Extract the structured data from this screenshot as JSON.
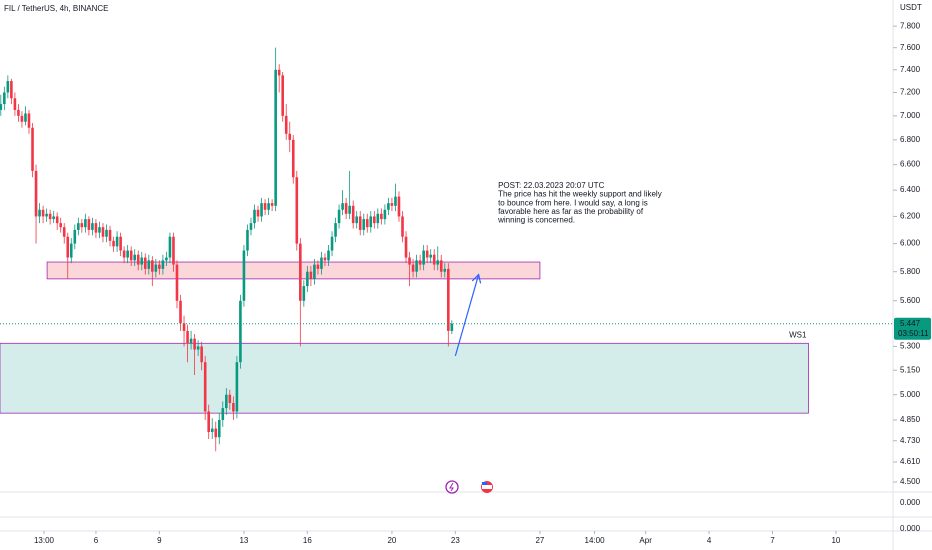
{
  "chart_data": {
    "type": "candlestick",
    "title": "FIL / TetherUS, 4h, BINANCE",
    "y_unit_label": "USDT",
    "log_scale": true,
    "grid": false,
    "up_color": "#089981",
    "down_color": "#f23645",
    "x": [
      1.5,
      1.667,
      1.833,
      2,
      2.167,
      2.333,
      2.5,
      2.667,
      2.833,
      3,
      3.167,
      3.333,
      3.5,
      3.667,
      3.833,
      4,
      4.167,
      4.333,
      4.5,
      4.667,
      4.833,
      5,
      5.167,
      5.333,
      5.5,
      5.667,
      5.833,
      6,
      6.167,
      6.333,
      6.5,
      6.667,
      6.833,
      7,
      7.167,
      7.333,
      7.5,
      7.667,
      7.833,
      8,
      8.167,
      8.333,
      8.5,
      8.667,
      8.833,
      9,
      9.167,
      9.333,
      9.5,
      9.667,
      9.833,
      10,
      10.167,
      10.333,
      10.5,
      10.667,
      10.833,
      11,
      11.167,
      11.333,
      11.5,
      11.667,
      11.833,
      12,
      12.167,
      12.333,
      12.5,
      12.667,
      12.833,
      13,
      13.167,
      13.333,
      13.5,
      13.667,
      13.833,
      14,
      14.167,
      14.333,
      14.5,
      14.667,
      14.833,
      15,
      15.167,
      15.333,
      15.5,
      15.667,
      15.833,
      16,
      16.167,
      16.333,
      16.5,
      16.667,
      16.833,
      17,
      17.167,
      17.333,
      17.5,
      17.667,
      17.833,
      18,
      18.167,
      18.333,
      18.5,
      18.667,
      18.833,
      19,
      19.167,
      19.333,
      19.5,
      19.667,
      19.833,
      20,
      20.167,
      20.333,
      20.5,
      20.667,
      20.833,
      21,
      21.167,
      21.333,
      21.5,
      21.667,
      21.833,
      22,
      22.167,
      22.333,
      22.5,
      22.667,
      22.833
    ],
    "candles": [
      [
        7.05,
        7.18,
        7.0,
        7.1
      ],
      [
        7.1,
        7.25,
        7.05,
        7.2
      ],
      [
        7.2,
        7.35,
        7.15,
        7.3
      ],
      [
        7.3,
        7.32,
        7.1,
        7.15
      ],
      [
        7.15,
        7.2,
        7.0,
        7.05
      ],
      [
        7.05,
        7.1,
        6.95,
        7.0
      ],
      [
        7.0,
        7.04,
        6.9,
        6.95
      ],
      [
        6.95,
        7.08,
        6.92,
        7.02
      ],
      [
        7.02,
        7.05,
        6.85,
        6.9
      ],
      [
        6.9,
        6.94,
        6.5,
        6.55
      ],
      [
        6.55,
        6.6,
        6.0,
        6.2
      ],
      [
        6.2,
        6.3,
        6.15,
        6.25
      ],
      [
        6.25,
        6.28,
        6.15,
        6.2
      ],
      [
        6.2,
        6.26,
        6.16,
        6.22
      ],
      [
        6.22,
        6.25,
        6.14,
        6.18
      ],
      [
        6.18,
        6.24,
        6.15,
        6.2
      ],
      [
        6.2,
        6.23,
        6.1,
        6.15
      ],
      [
        6.15,
        6.19,
        6.08,
        6.12
      ],
      [
        6.12,
        6.15,
        6.0,
        6.05
      ],
      [
        6.05,
        6.08,
        5.75,
        5.9
      ],
      [
        5.9,
        6.04,
        5.86,
        6.0
      ],
      [
        6.0,
        6.14,
        5.96,
        6.1
      ],
      [
        6.1,
        6.19,
        6.06,
        6.15
      ],
      [
        6.15,
        6.18,
        6.08,
        6.12
      ],
      [
        6.12,
        6.22,
        6.08,
        6.18
      ],
      [
        6.18,
        6.2,
        6.06,
        6.1
      ],
      [
        6.1,
        6.19,
        6.06,
        6.15
      ],
      [
        6.15,
        6.18,
        6.04,
        6.08
      ],
      [
        6.08,
        6.16,
        6.04,
        6.12
      ],
      [
        6.12,
        6.15,
        6.01,
        6.05
      ],
      [
        6.05,
        6.14,
        6.01,
        6.1
      ],
      [
        6.1,
        6.13,
        5.98,
        6.02
      ],
      [
        6.02,
        6.05,
        5.94,
        5.98
      ],
      [
        5.98,
        6.09,
        5.94,
        6.05
      ],
      [
        6.05,
        6.08,
        5.91,
        5.95
      ],
      [
        5.95,
        5.98,
        5.86,
        5.9
      ],
      [
        5.9,
        5.99,
        5.86,
        5.95
      ],
      [
        5.95,
        5.98,
        5.84,
        5.88
      ],
      [
        5.88,
        5.96,
        5.84,
        5.92
      ],
      [
        5.92,
        5.95,
        5.81,
        5.85
      ],
      [
        5.85,
        5.94,
        5.81,
        5.9
      ],
      [
        5.9,
        5.93,
        5.78,
        5.82
      ],
      [
        5.82,
        5.92,
        5.78,
        5.88
      ],
      [
        5.88,
        5.91,
        5.7,
        5.8
      ],
      [
        5.8,
        5.89,
        5.76,
        5.85
      ],
      [
        5.85,
        5.88,
        5.78,
        5.82
      ],
      [
        5.82,
        5.92,
        5.78,
        5.88
      ],
      [
        5.88,
        5.94,
        5.84,
        5.9
      ],
      [
        5.9,
        6.08,
        5.86,
        6.05
      ],
      [
        6.05,
        6.08,
        5.8,
        5.85
      ],
      [
        5.85,
        5.88,
        5.55,
        5.6
      ],
      [
        5.6,
        5.64,
        5.4,
        5.45
      ],
      [
        5.45,
        5.5,
        5.3,
        5.4
      ],
      [
        5.4,
        5.44,
        5.2,
        5.32
      ],
      [
        5.32,
        5.4,
        5.28,
        5.35
      ],
      [
        5.35,
        5.38,
        5.12,
        5.28
      ],
      [
        5.28,
        5.34,
        5.24,
        5.3
      ],
      [
        5.3,
        5.33,
        5.15,
        5.2
      ],
      [
        5.2,
        5.24,
        4.85,
        4.9
      ],
      [
        4.9,
        4.94,
        4.74,
        4.78
      ],
      [
        4.78,
        4.86,
        4.74,
        4.8
      ],
      [
        4.8,
        4.84,
        4.67,
        4.75
      ],
      [
        4.75,
        4.89,
        4.71,
        4.85
      ],
      [
        4.85,
        4.96,
        4.81,
        4.92
      ],
      [
        4.92,
        5.04,
        4.88,
        5.0
      ],
      [
        5.0,
        5.03,
        4.91,
        4.95
      ],
      [
        4.95,
        4.99,
        4.85,
        4.9
      ],
      [
        4.9,
        5.24,
        4.86,
        5.2
      ],
      [
        5.2,
        5.64,
        5.16,
        5.6
      ],
      [
        5.6,
        5.99,
        5.56,
        5.95
      ],
      [
        5.95,
        6.14,
        5.91,
        6.1
      ],
      [
        6.1,
        6.19,
        6.06,
        6.15
      ],
      [
        6.15,
        6.29,
        6.11,
        6.25
      ],
      [
        6.25,
        6.28,
        6.16,
        6.2
      ],
      [
        6.2,
        6.34,
        6.16,
        6.3
      ],
      [
        6.3,
        6.33,
        6.21,
        6.25
      ],
      [
        6.25,
        6.34,
        6.21,
        6.3
      ],
      [
        6.3,
        6.33,
        6.24,
        6.28
      ],
      [
        6.28,
        7.6,
        6.24,
        7.4
      ],
      [
        7.4,
        7.45,
        7.2,
        7.35
      ],
      [
        7.35,
        7.38,
        6.95,
        7.0
      ],
      [
        7.0,
        7.1,
        6.8,
        6.85
      ],
      [
        6.85,
        6.95,
        6.7,
        6.8
      ],
      [
        6.8,
        6.84,
        6.45,
        6.5
      ],
      [
        6.5,
        6.55,
        5.95,
        6.0
      ],
      [
        6.0,
        6.04,
        5.3,
        5.6
      ],
      [
        5.6,
        5.74,
        5.56,
        5.7
      ],
      [
        5.7,
        5.84,
        5.66,
        5.8
      ],
      [
        5.8,
        5.84,
        5.7,
        5.75
      ],
      [
        5.75,
        5.89,
        5.71,
        5.85
      ],
      [
        5.85,
        5.88,
        5.78,
        5.82
      ],
      [
        5.82,
        5.94,
        5.78,
        5.9
      ],
      [
        5.9,
        5.93,
        5.84,
        5.88
      ],
      [
        5.88,
        5.99,
        5.84,
        5.95
      ],
      [
        5.95,
        6.09,
        5.91,
        6.05
      ],
      [
        6.05,
        6.19,
        6.01,
        6.15
      ],
      [
        6.15,
        6.29,
        6.11,
        6.25
      ],
      [
        6.25,
        6.4,
        6.21,
        6.3
      ],
      [
        6.3,
        6.34,
        6.18,
        6.22
      ],
      [
        6.22,
        6.55,
        6.18,
        6.28
      ],
      [
        6.28,
        6.32,
        6.11,
        6.15
      ],
      [
        6.15,
        6.24,
        6.11,
        6.2
      ],
      [
        6.2,
        6.24,
        6.06,
        6.1
      ],
      [
        6.1,
        6.22,
        6.06,
        6.18
      ],
      [
        6.18,
        6.22,
        6.08,
        6.12
      ],
      [
        6.12,
        6.24,
        6.08,
        6.2
      ],
      [
        6.2,
        6.24,
        6.11,
        6.15
      ],
      [
        6.15,
        6.26,
        6.11,
        6.22
      ],
      [
        6.22,
        6.26,
        6.14,
        6.18
      ],
      [
        6.18,
        6.29,
        6.14,
        6.25
      ],
      [
        6.25,
        6.34,
        6.21,
        6.3
      ],
      [
        6.3,
        6.34,
        6.24,
        6.28
      ],
      [
        6.28,
        6.45,
        6.24,
        6.35
      ],
      [
        6.35,
        6.39,
        6.16,
        6.2
      ],
      [
        6.2,
        6.24,
        6.01,
        6.05
      ],
      [
        6.05,
        6.09,
        5.86,
        5.9
      ],
      [
        5.9,
        5.94,
        5.7,
        5.85
      ],
      [
        5.85,
        5.89,
        5.76,
        5.8
      ],
      [
        5.8,
        5.92,
        5.76,
        5.88
      ],
      [
        5.88,
        5.92,
        5.81,
        5.85
      ],
      [
        5.85,
        5.99,
        5.81,
        5.95
      ],
      [
        5.95,
        5.99,
        5.86,
        5.9
      ],
      [
        5.9,
        5.96,
        5.86,
        5.92
      ],
      [
        5.92,
        5.96,
        5.81,
        5.85
      ],
      [
        5.85,
        5.98,
        5.81,
        5.88
      ],
      [
        5.88,
        5.92,
        5.76,
        5.8
      ],
      [
        5.8,
        5.86,
        5.76,
        5.82
      ],
      [
        5.82,
        5.86,
        5.3,
        5.4
      ],
      [
        5.4,
        5.47,
        5.38,
        5.447
      ]
    ],
    "xlim": [
      1.462,
      43.7
    ],
    "ylim": [
      4.457,
      8.05
    ],
    "yticks": [
      {
        "value": 7.8,
        "label": "7.800"
      },
      {
        "value": 7.6,
        "label": "7.600"
      },
      {
        "value": 7.4,
        "label": "7.400"
      },
      {
        "value": 7.2,
        "label": "7.200"
      },
      {
        "value": 7,
        "label": "7.000"
      },
      {
        "value": 6.8,
        "label": "6.800"
      },
      {
        "value": 6.6,
        "label": "6.600"
      },
      {
        "value": 6.4,
        "label": "6.400"
      },
      {
        "value": 6.2,
        "label": "6.200"
      },
      {
        "value": 6,
        "label": "6.000"
      },
      {
        "value": 5.8,
        "label": "5.800"
      },
      {
        "value": 5.6,
        "label": "5.600"
      },
      {
        "value": 5.3,
        "label": "5.300"
      },
      {
        "value": 5.15,
        "label": "5.150"
      },
      {
        "value": 5,
        "label": "5.000"
      },
      {
        "value": 4.85,
        "label": "4.850"
      },
      {
        "value": 4.73,
        "label": "4.730"
      },
      {
        "value": 4.61,
        "label": "4.610"
      },
      {
        "value": 4.5,
        "label": "4.500"
      }
    ],
    "xticks": [
      {
        "value": 3.542,
        "label": "13:00"
      },
      6,
      9,
      13,
      16,
      20,
      23,
      27,
      {
        "value": 29.583,
        "label": "14:00"
      },
      {
        "value": 32,
        "label": "Apr"
      },
      {
        "value": 35,
        "label": "4"
      },
      {
        "value": 38,
        "label": "7"
      },
      {
        "value": 41,
        "label": "10"
      }
    ],
    "last_price": {
      "value": 5.447,
      "label": "5.447",
      "countdown": "03:50:11",
      "color": "#089981"
    },
    "lower_pane_ticks": [
      "0.000",
      "0.000"
    ],
    "zones": [
      {
        "from_x": 3.69,
        "to_x": 27,
        "low": 5.75,
        "high": 5.868,
        "fill": "rgba(242,54,69,0.2)",
        "border": "#9c27b0"
      },
      {
        "name": "WS1",
        "from_x": 1.462,
        "to_x": 39.7,
        "low": 4.89,
        "high": 5.32,
        "fill": "rgba(38,166,154,0.2)",
        "border": "#9c27b0"
      }
    ],
    "arrow": {
      "x": [
        23.0,
        24.1
      ],
      "y": [
        5.24,
        5.78
      ],
      "color": "#2962ff"
    },
    "annotation": {
      "x": 25.02,
      "y": 6.44,
      "color": "#2962ff",
      "lines": [
        "POST: 22.03.2023 20:07 UTC",
        "The price has hit the weekly support and likely",
        "to bounce from here. I would say, a long is",
        "favorable here as far as the probability of",
        "winning is concerned."
      ]
    }
  }
}
